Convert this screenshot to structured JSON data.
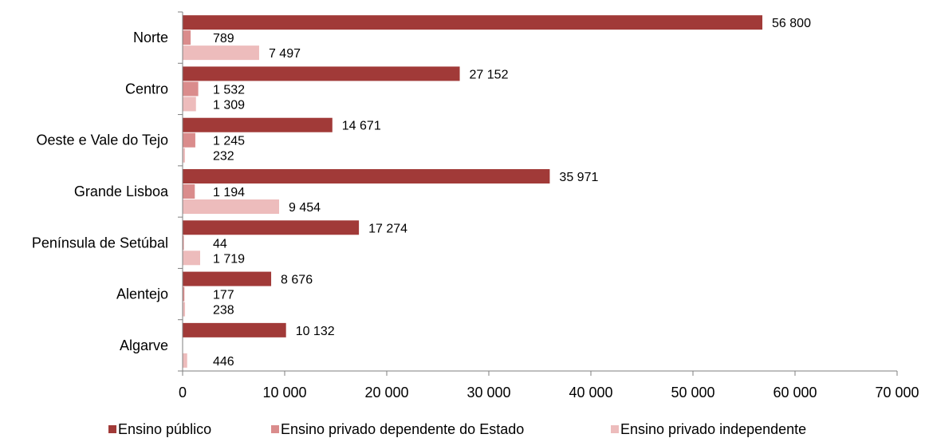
{
  "chart_data": {
    "type": "bar",
    "orientation": "horizontal",
    "categories": [
      "Norte",
      "Centro",
      "Oeste e Vale do Tejo",
      "Grande Lisboa",
      "Península de Setúbal",
      "Alentejo",
      "Algarve"
    ],
    "series": [
      {
        "name": "Ensino público",
        "color": "#a13a38",
        "values": [
          56800,
          27152,
          14671,
          35971,
          17274,
          8676,
          10132
        ],
        "labels": [
          "56 800",
          "27 152",
          "14 671",
          "35 971",
          "17 274",
          "8 676",
          "10 132"
        ]
      },
      {
        "name": "Ensino privado dependente do Estado",
        "color": "#da8c8c",
        "values": [
          789,
          1532,
          1245,
          1194,
          44,
          177,
          null
        ],
        "labels": [
          "789",
          "1 532",
          "1 245",
          "1 194",
          "44",
          "177",
          ""
        ]
      },
      {
        "name": "Ensino privado independente",
        "color": "#edbcbc",
        "values": [
          7497,
          1309,
          232,
          9454,
          1719,
          238,
          446
        ],
        "labels": [
          "7 497",
          "1 309",
          "232",
          "9 454",
          "1 719",
          "238",
          "446"
        ]
      }
    ],
    "xlim": [
      0,
      70000
    ],
    "xticks": [
      0,
      10000,
      20000,
      30000,
      40000,
      50000,
      60000,
      70000
    ],
    "xtick_labels": [
      "0",
      "10 000",
      "20 000",
      "30 000",
      "40 000",
      "50 000",
      "60 000",
      "70 000"
    ],
    "grid": false,
    "legend_position": "bottom"
  }
}
